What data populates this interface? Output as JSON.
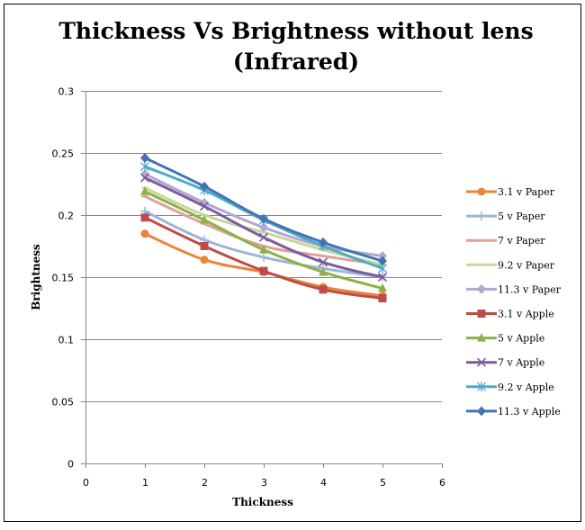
{
  "chart_data": {
    "type": "line",
    "title_lines": [
      "Thickness Vs Brightness without lens",
      "(Infrared)"
    ],
    "xlabel": "Thickness",
    "ylabel": "Brightness",
    "xlim": [
      0,
      6
    ],
    "ylim": [
      0,
      0.3
    ],
    "x_ticks": [
      "0",
      "1",
      "2",
      "3",
      "4",
      "5",
      "6"
    ],
    "y_ticks": [
      "0",
      "0.05",
      "0.1",
      "0.15",
      "0.2",
      "0.25",
      "0.3"
    ],
    "grid": "horizontal",
    "legend_position": "right",
    "x": [
      1,
      2,
      3,
      4,
      5
    ],
    "series": [
      {
        "name": "3.1 v Paper",
        "color": "#E8853A",
        "marker": "circle",
        "values": [
          0.185,
          0.164,
          0.154,
          0.142,
          0.135
        ]
      },
      {
        "name": "5 v Paper",
        "color": "#9DB5D8",
        "marker": "plus",
        "values": [
          0.203,
          0.18,
          0.166,
          0.157,
          0.15
        ]
      },
      {
        "name": "7 v Paper",
        "color": "#E0A09C",
        "marker": "dash",
        "values": [
          0.215,
          0.193,
          0.175,
          0.167,
          0.16
        ]
      },
      {
        "name": "9.2 v Paper",
        "color": "#C6D89A",
        "marker": "dash",
        "values": [
          0.222,
          0.2,
          0.186,
          0.172,
          0.16
        ]
      },
      {
        "name": "11.3 v Paper",
        "color": "#B4A6CF",
        "marker": "diamond",
        "values": [
          0.233,
          0.21,
          0.19,
          0.175,
          0.167
        ]
      },
      {
        "name": "3.1 v Apple",
        "color": "#BE4B48",
        "marker": "square",
        "values": [
          0.198,
          0.175,
          0.155,
          0.14,
          0.133
        ]
      },
      {
        "name": "5 v Apple",
        "color": "#8FB047",
        "marker": "triangle",
        "values": [
          0.219,
          0.196,
          0.172,
          0.154,
          0.141
        ]
      },
      {
        "name": "7 v Apple",
        "color": "#7B5C9C",
        "marker": "x",
        "values": [
          0.23,
          0.207,
          0.182,
          0.162,
          0.15
        ]
      },
      {
        "name": "9.2 v Apple",
        "color": "#4BACC6",
        "marker": "star",
        "values": [
          0.239,
          0.22,
          0.196,
          0.175,
          0.157
        ]
      },
      {
        "name": "11.3 v Apple",
        "color": "#4473B5",
        "marker": "diamond",
        "values": [
          0.246,
          0.223,
          0.197,
          0.178,
          0.163
        ]
      }
    ]
  }
}
